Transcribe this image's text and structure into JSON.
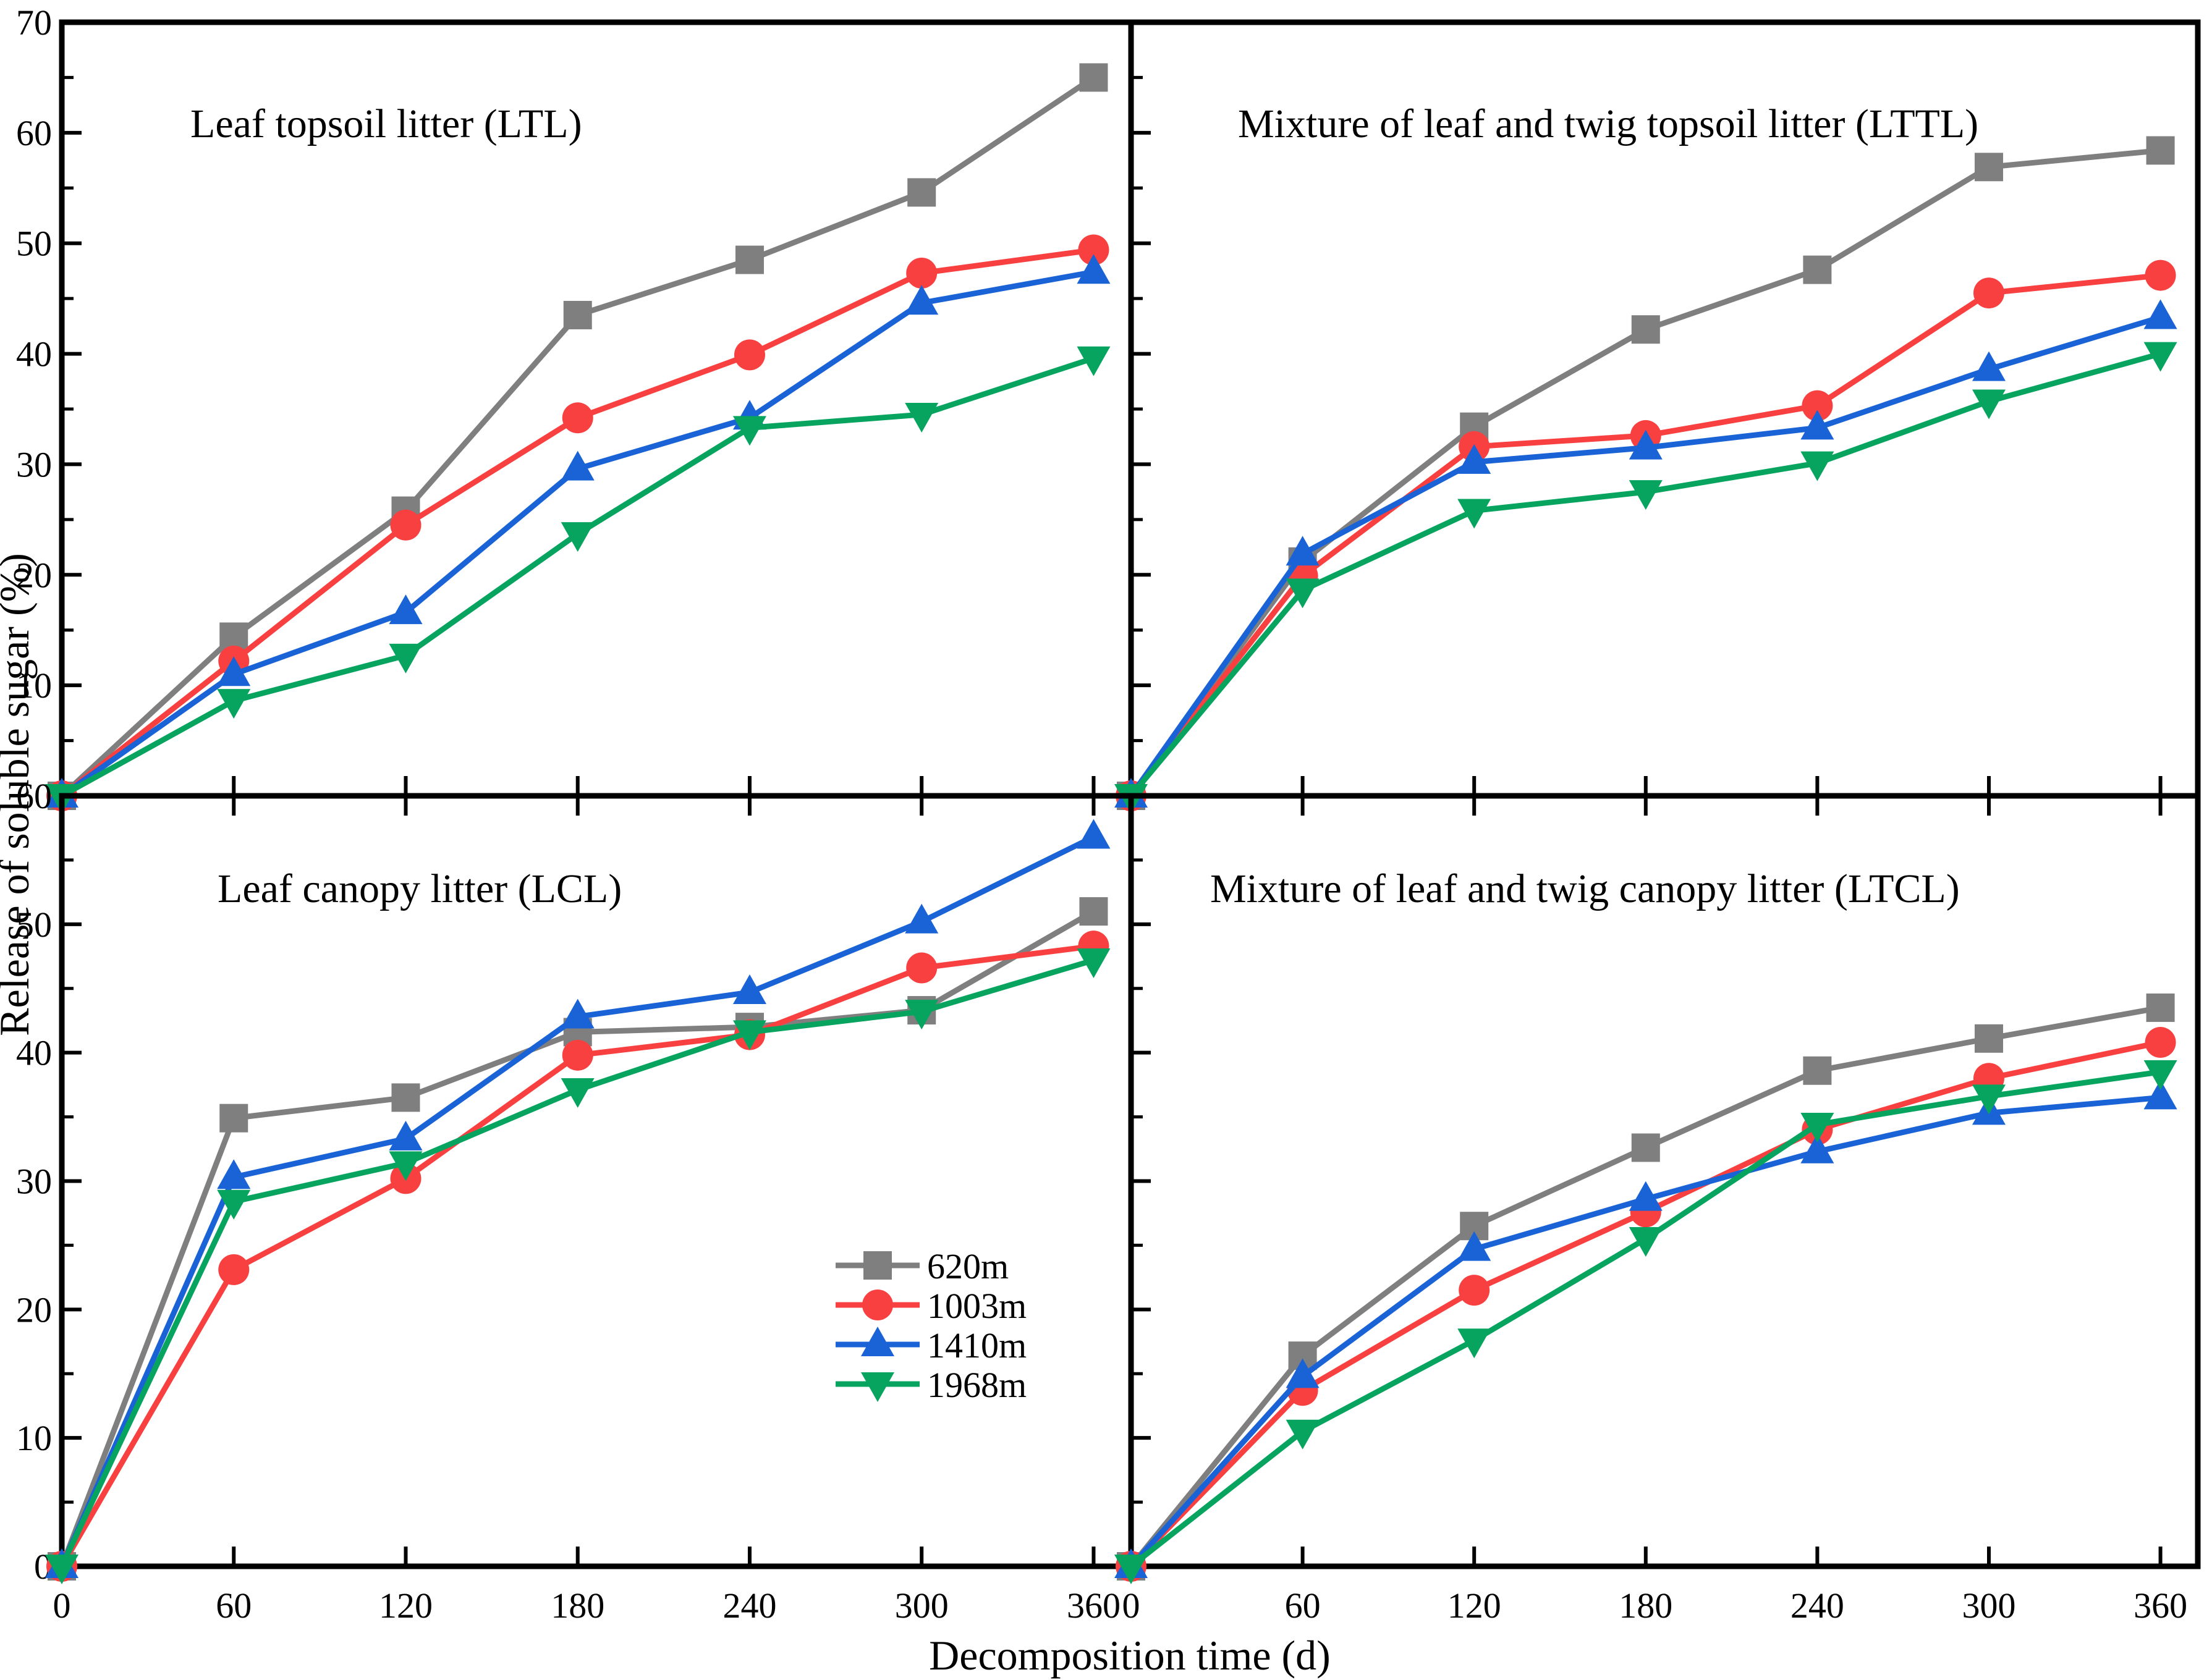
{
  "figure": {
    "background": "#ffffff",
    "axis_color": "#000000",
    "x_axis_title": "Decomposition time (d)",
    "y_axis_title": "Release of soluble sugar (%)"
  },
  "legend": {
    "location": "inside bottom-left panel, center-right",
    "entries": [
      {
        "label": "620m",
        "color": "#7f7f7f",
        "marker": "square"
      },
      {
        "label": "1003m",
        "color": "#f94040",
        "marker": "circle"
      },
      {
        "label": "1410m",
        "color": "#1a63d6",
        "marker": "triangle-up"
      },
      {
        "label": "1968m",
        "color": "#07a45f",
        "marker": "triangle-down"
      }
    ]
  },
  "chart_data": [
    {
      "type": "line",
      "panel": "top-left",
      "title": "Leaf topsoil litter (LTL)",
      "x": [
        0,
        60,
        120,
        180,
        240,
        300,
        360
      ],
      "x_ticks": [
        0,
        60,
        120,
        180,
        240,
        300,
        360
      ],
      "ylim": [
        0,
        70
      ],
      "y_tick_labels_shown": [
        70,
        60,
        50,
        40,
        30,
        20,
        10
      ],
      "grid": false,
      "series": [
        {
          "name": "620m",
          "color": "#7f7f7f",
          "marker": "square",
          "values": [
            0,
            14.4,
            25.8,
            43.5,
            48.5,
            54.6,
            65.0
          ]
        },
        {
          "name": "1003m",
          "color": "#f94040",
          "marker": "circle",
          "values": [
            0,
            12.2,
            24.5,
            34.2,
            39.9,
            47.3,
            49.4
          ]
        },
        {
          "name": "1410m",
          "color": "#1a63d6",
          "marker": "triangle-up",
          "values": [
            0,
            11.0,
            16.6,
            29.6,
            34.2,
            44.6,
            47.4
          ]
        },
        {
          "name": "1968m",
          "color": "#07a45f",
          "marker": "triangle-down",
          "values": [
            0,
            8.6,
            12.7,
            23.7,
            33.3,
            34.5,
            39.6
          ]
        }
      ]
    },
    {
      "type": "line",
      "panel": "top-right",
      "title": "Mixture of leaf and twig topsoil litter (LTTL)",
      "x": [
        0,
        60,
        120,
        180,
        240,
        300,
        360
      ],
      "x_ticks": [
        0,
        60,
        120,
        180,
        240,
        300,
        360
      ],
      "ylim": [
        0,
        70
      ],
      "y_tick_labels_shown": [],
      "grid": false,
      "series": [
        {
          "name": "620m",
          "color": "#7f7f7f",
          "marker": "square",
          "values": [
            0,
            21.2,
            33.4,
            42.2,
            47.6,
            56.9,
            58.4
          ]
        },
        {
          "name": "1003m",
          "color": "#f94040",
          "marker": "circle",
          "values": [
            0,
            19.9,
            31.6,
            32.6,
            35.3,
            45.5,
            47.1
          ]
        },
        {
          "name": "1410m",
          "color": "#1a63d6",
          "marker": "triangle-up",
          "values": [
            0,
            21.9,
            30.2,
            31.5,
            33.3,
            38.6,
            43.3
          ]
        },
        {
          "name": "1968m",
          "color": "#07a45f",
          "marker": "triangle-down",
          "values": [
            0,
            18.6,
            25.8,
            27.5,
            30.1,
            35.7,
            40.0
          ]
        }
      ]
    },
    {
      "type": "line",
      "panel": "bottom-left",
      "title": "Leaf canopy litter (LCL)",
      "x": [
        0,
        60,
        120,
        180,
        240,
        300,
        360
      ],
      "x_ticks": [
        0,
        60,
        120,
        180,
        240,
        300,
        360
      ],
      "ylim": [
        0,
        60
      ],
      "y_tick_labels_shown": [
        60,
        50,
        40,
        30,
        20,
        10,
        0
      ],
      "grid": false,
      "has_legend": true,
      "series": [
        {
          "name": "620m",
          "color": "#7f7f7f",
          "marker": "square",
          "values": [
            0,
            34.9,
            36.5,
            41.6,
            42.0,
            43.3,
            51.0
          ]
        },
        {
          "name": "1003m",
          "color": "#f94040",
          "marker": "circle",
          "values": [
            0,
            23.1,
            30.2,
            39.8,
            41.4,
            46.6,
            48.3
          ]
        },
        {
          "name": "1410m",
          "color": "#1a63d6",
          "marker": "triangle-up",
          "values": [
            0,
            30.3,
            33.3,
            42.8,
            44.7,
            50.2,
            56.8
          ]
        },
        {
          "name": "1968m",
          "color": "#07a45f",
          "marker": "triangle-down",
          "values": [
            0,
            28.4,
            31.4,
            37.1,
            41.6,
            43.2,
            47.2
          ]
        }
      ]
    },
    {
      "type": "line",
      "panel": "bottom-right",
      "title": "Mixture of leaf and twig canopy litter (LTCL)",
      "x": [
        0,
        60,
        120,
        180,
        240,
        300,
        360
      ],
      "x_ticks": [
        0,
        60,
        120,
        180,
        240,
        300,
        360
      ],
      "ylim": [
        0,
        60
      ],
      "y_tick_labels_shown": [],
      "grid": false,
      "series": [
        {
          "name": "620m",
          "color": "#7f7f7f",
          "marker": "square",
          "values": [
            0,
            16.4,
            26.5,
            32.6,
            38.6,
            41.1,
            43.5
          ]
        },
        {
          "name": "1003m",
          "color": "#f94040",
          "marker": "circle",
          "values": [
            0,
            13.7,
            21.5,
            27.6,
            34.0,
            38.0,
            40.8
          ]
        },
        {
          "name": "1410m",
          "color": "#1a63d6",
          "marker": "triangle-up",
          "values": [
            0,
            14.8,
            24.7,
            28.6,
            32.3,
            35.3,
            36.5
          ]
        },
        {
          "name": "1968m",
          "color": "#07a45f",
          "marker": "triangle-down",
          "values": [
            0,
            10.5,
            17.6,
            25.5,
            34.4,
            36.6,
            38.5
          ]
        }
      ]
    }
  ]
}
